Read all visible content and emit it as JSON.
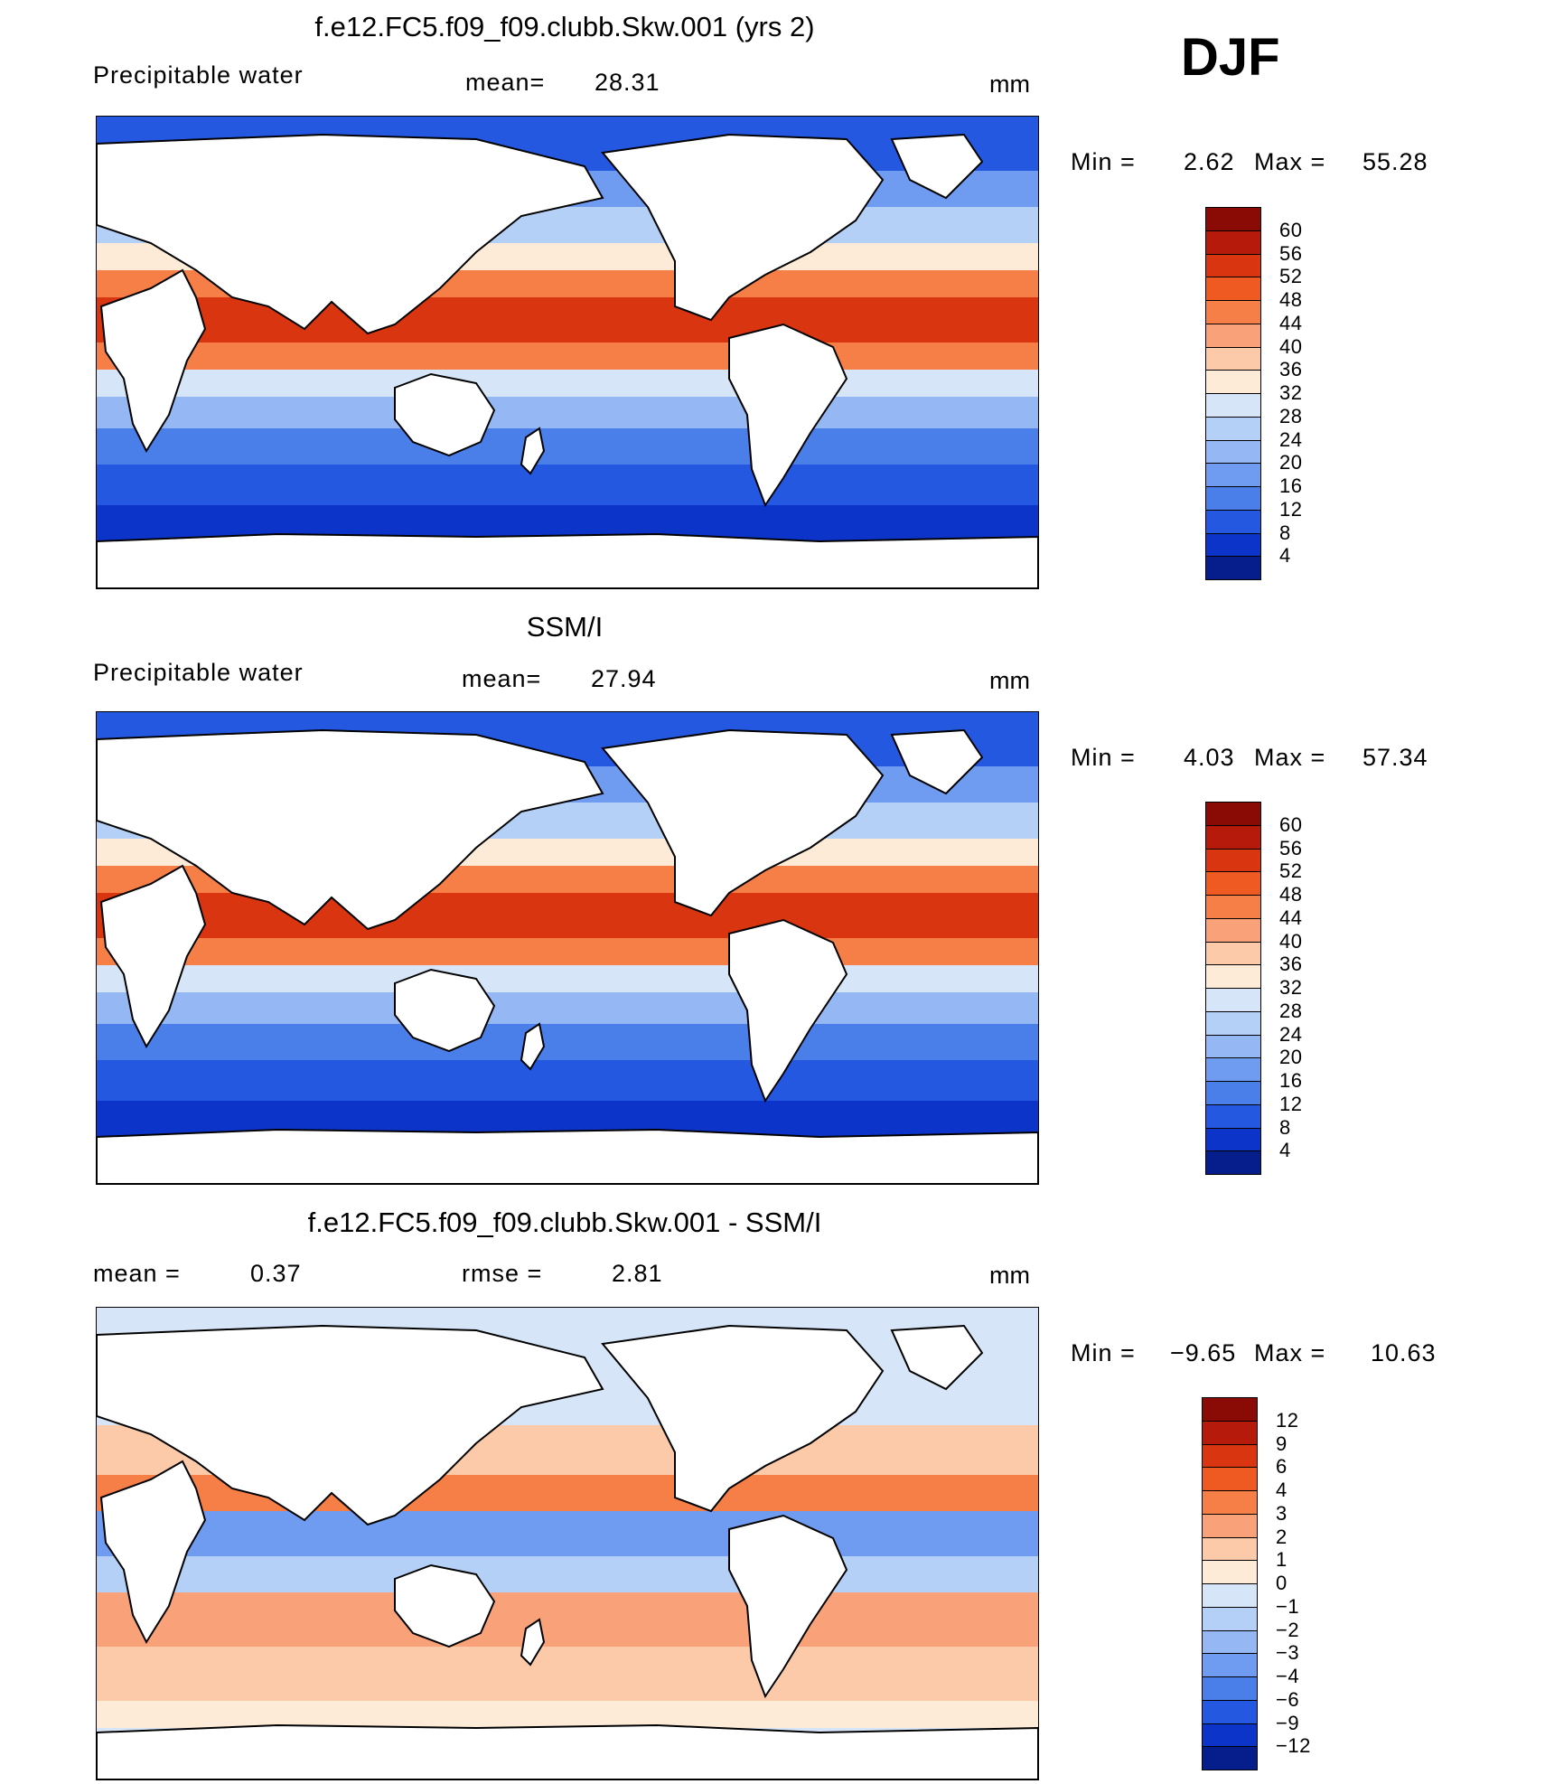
{
  "season": "DJF",
  "chart_data": [
    {
      "type": "heatmap",
      "title": "f.e12.FC5.f09_f09.clubb.Skw.001 (yrs 2)",
      "left_label": "Precipitable water",
      "stat_label": "mean=",
      "stat_value": "28.31",
      "units": "mm",
      "min_label": "Min =",
      "min_value": "2.62",
      "max_label": "Max =",
      "max_value": "55.28",
      "colorbar_levels": [
        "60",
        "56",
        "52",
        "48",
        "44",
        "40",
        "36",
        "32",
        "28",
        "24",
        "20",
        "16",
        "12",
        "8",
        "4"
      ],
      "colorbar_colors": [
        "#8a0a05",
        "#b51a0a",
        "#d93511",
        "#ef5a22",
        "#f67e47",
        "#f9a27a",
        "#fccaa9",
        "#fdebd8",
        "#d6e6f8",
        "#b5d0f6",
        "#95b8f4",
        "#6f9cf0",
        "#4a7ee8",
        "#2458e0",
        "#0c34c8",
        "#061e8c"
      ]
    },
    {
      "type": "heatmap",
      "title": "SSM/I",
      "left_label": "Precipitable water",
      "stat_label": "mean=",
      "stat_value": "27.94",
      "units": "mm",
      "min_label": "Min =",
      "min_value": "4.03",
      "max_label": "Max =",
      "max_value": "57.34",
      "colorbar_levels": [
        "60",
        "56",
        "52",
        "48",
        "44",
        "40",
        "36",
        "32",
        "28",
        "24",
        "20",
        "16",
        "12",
        "8",
        "4"
      ],
      "colorbar_colors": [
        "#8a0a05",
        "#b51a0a",
        "#d93511",
        "#ef5a22",
        "#f67e47",
        "#f9a27a",
        "#fccaa9",
        "#fdebd8",
        "#d6e6f8",
        "#b5d0f6",
        "#95b8f4",
        "#6f9cf0",
        "#4a7ee8",
        "#2458e0",
        "#0c34c8",
        "#061e8c"
      ]
    },
    {
      "type": "heatmap",
      "title": "f.e12.FC5.f09_f09.clubb.Skw.001 - SSM/I",
      "left_label": "mean =",
      "left_value": "0.37",
      "stat_label": "rmse =",
      "stat_value": "2.81",
      "units": "mm",
      "min_label": "Min =",
      "min_value": "−9.65",
      "max_label": "Max =",
      "max_value": "10.63",
      "colorbar_levels": [
        "12",
        "9",
        "6",
        "4",
        "3",
        "2",
        "1",
        "0",
        "−1",
        "−2",
        "−3",
        "−4",
        "−6",
        "−9",
        "−12"
      ],
      "colorbar_colors": [
        "#8a0a05",
        "#b51a0a",
        "#d93511",
        "#ef5a22",
        "#f67e47",
        "#f9a27a",
        "#fccaa9",
        "#fdebd8",
        "#d6e6f8",
        "#b5d0f6",
        "#95b8f4",
        "#6f9cf0",
        "#4a7ee8",
        "#2458e0",
        "#0c34c8",
        "#061e8c"
      ]
    }
  ]
}
